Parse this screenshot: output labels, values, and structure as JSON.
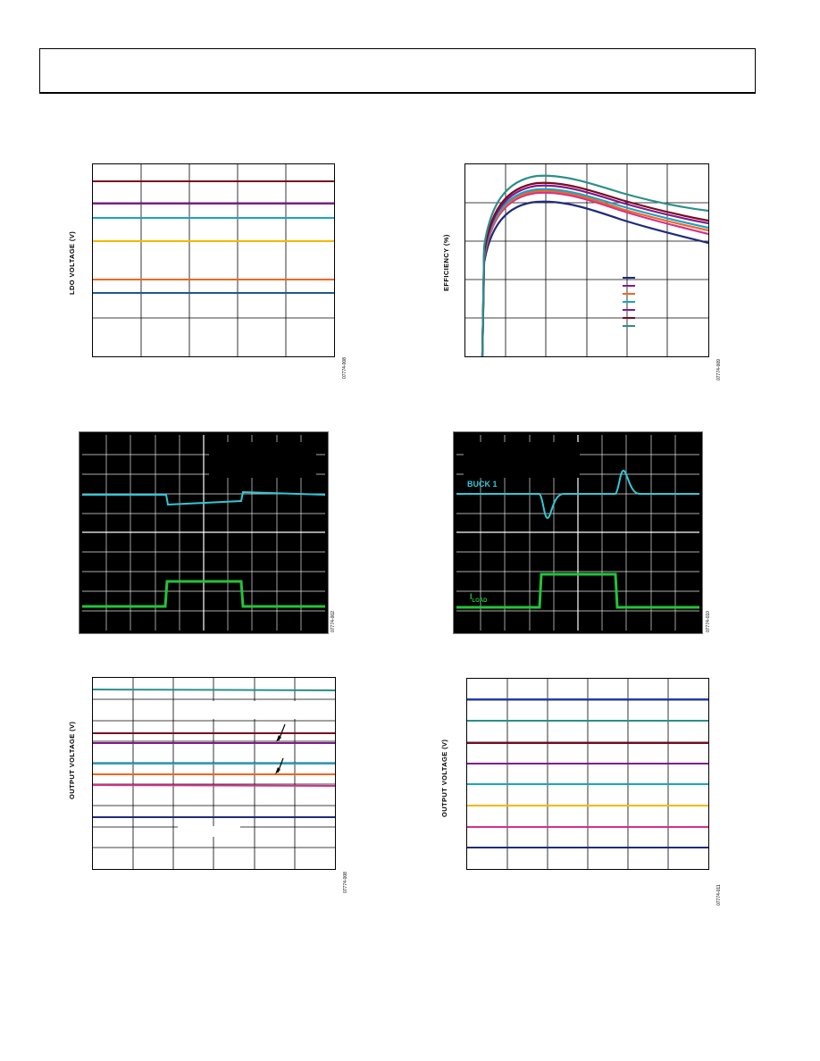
{
  "header": {
    "title": ""
  },
  "colors": {
    "darkred": "#7a0a1e",
    "purple": "#84198f",
    "cyan": "#1aa3c7",
    "amber": "#f5b800",
    "orange": "#f26522",
    "navy": "#1f3c88",
    "teal": "#2b8f8a",
    "magenta": "#d4328a",
    "scope_cyan": "#30c8d8",
    "scope_green": "#22c43a"
  },
  "figures": {
    "ldo_voltage": {
      "ylabel": "LDO VOLTAGE (V)",
      "fig_id": "07774-008",
      "chart_data": {
        "type": "line",
        "ylabel": "LDO VOLTAGE (V)",
        "grid": true,
        "series_colors": [
          "darkred",
          "purple",
          "cyan",
          "amber",
          "orange",
          "navy"
        ],
        "levels_fraction": [
          0.91,
          0.79,
          0.72,
          0.6,
          0.4,
          0.33
        ]
      }
    },
    "efficiency": {
      "ylabel": "EFFICIENCY (%)",
      "fig_id": "07774-009",
      "chart_data": {
        "type": "line",
        "ylabel": "EFFICIENCY (%)",
        "grid": true,
        "legend_position": "bottom-right",
        "legend_colors": [
          "navy",
          "purple",
          "orange",
          "cyan",
          "magenta",
          "darkred",
          "teal"
        ]
      }
    },
    "scope_buck_load": {
      "fig_id": "07774-002",
      "ch1_color": "scope_cyan",
      "ch2_color": "scope_green"
    },
    "scope_buck1": {
      "trace1_label": "BUCK 1",
      "trace2_label": "I",
      "trace2_sub": "LOAD",
      "fig_id": "07774-010"
    },
    "output_voltage_a": {
      "ylabel": "OUTPUT VOLTAGE (V)",
      "fig_id": "07774-008",
      "chart_data": {
        "type": "line",
        "ylabel": "OUTPUT VOLTAGE (V)",
        "grid": true,
        "series_colors": [
          "teal",
          "darkred",
          "purple",
          "cyan",
          "orange",
          "magenta",
          "navy"
        ]
      }
    },
    "output_voltage_b": {
      "ylabel": "OUTPUT VOLTAGE (V)",
      "fig_id": "07774-011",
      "chart_data": {
        "type": "line",
        "ylabel": "OUTPUT VOLTAGE (V)",
        "grid": true,
        "series_colors": [
          "navy",
          "teal",
          "darkred",
          "purple",
          "cyan",
          "amber",
          "magenta",
          "navy"
        ]
      }
    }
  }
}
